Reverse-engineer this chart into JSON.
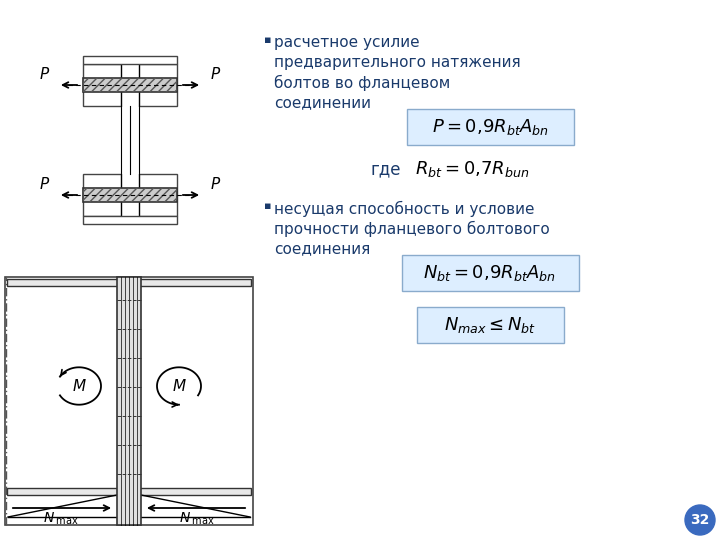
{
  "bg_color": "#ffffff",
  "text_color": "#1a3a6b",
  "bullet1_lines": [
    "расчетное усилие",
    "предварительного натяжения",
    "болтов во фланцевом",
    "соединении"
  ],
  "formula1": "$P = 0{,}9R_{bt}A_{bn}$",
  "where_text": "где",
  "formula_where": "$R_{bt} = 0{,}7R_{bun}$",
  "bullet2_lines": [
    "несущая способность и условие",
    "прочности фланцевого болтового",
    "соединения"
  ],
  "formula2": "$N_{bt} = 0{,}9R_{bt}A_{bn}$",
  "formula3": "$N_{max} \\leq N_{bt}$",
  "page_num": "32",
  "page_circle_color": "#3a6abf",
  "formula_text_color": "#000000"
}
